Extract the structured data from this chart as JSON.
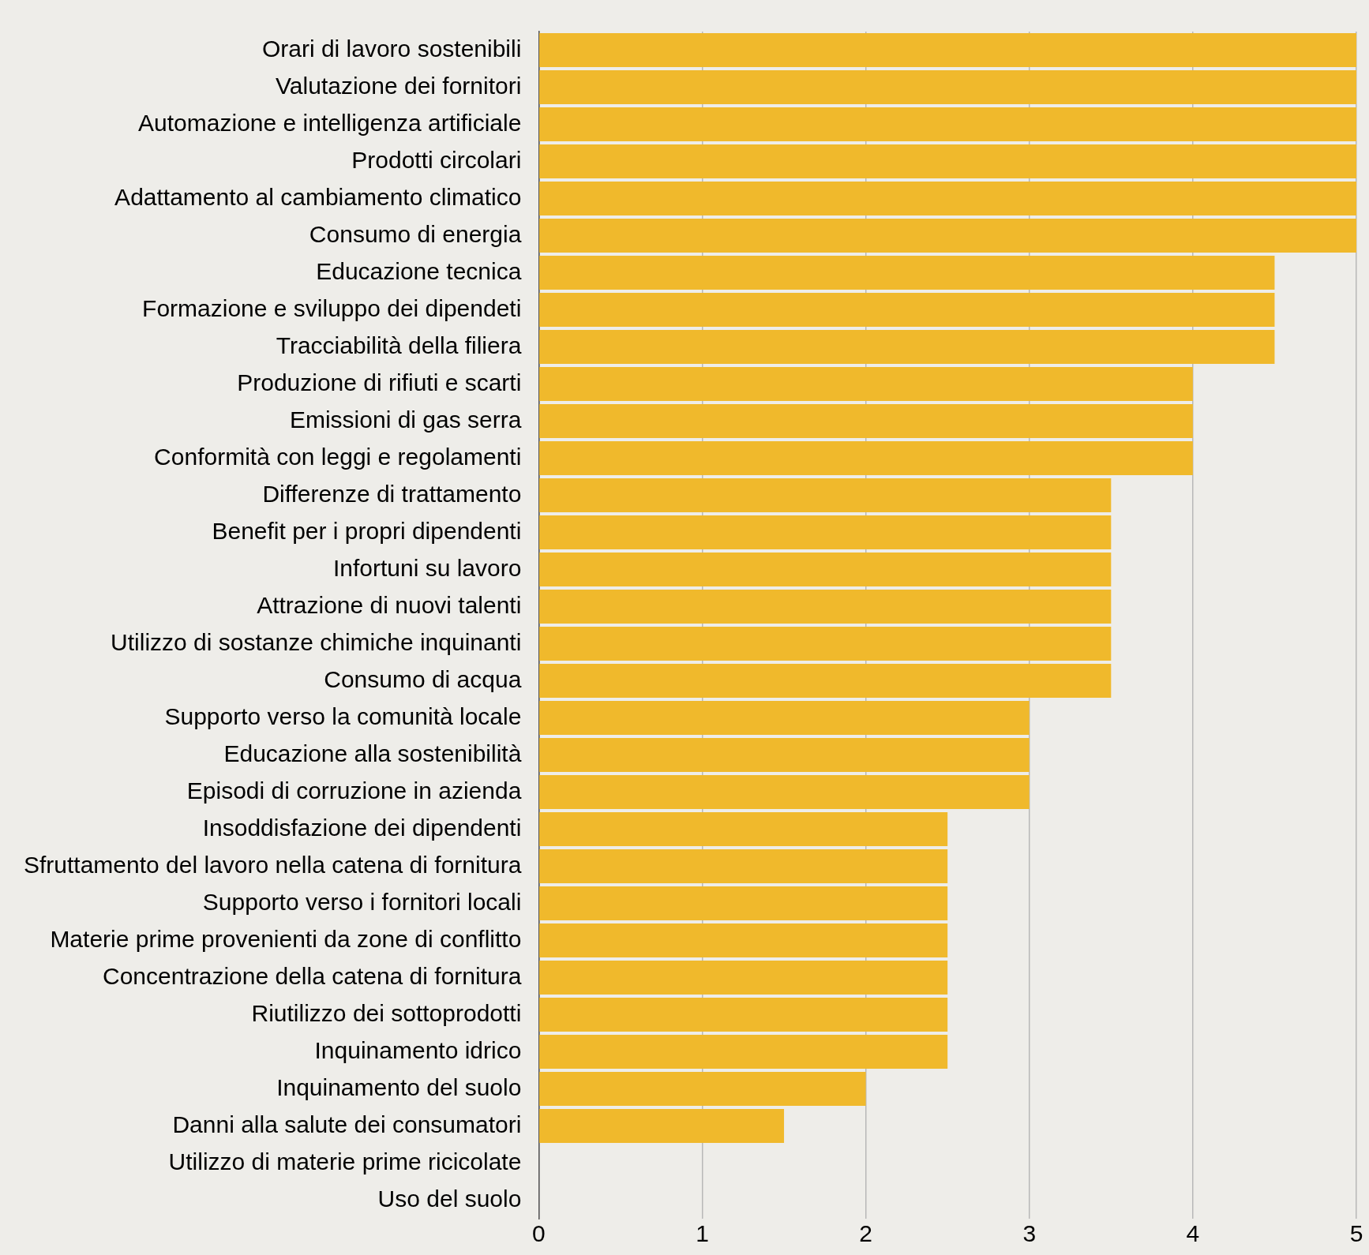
{
  "chart_data": {
    "type": "bar",
    "orientation": "horizontal",
    "categories": [
      "Orari di lavoro sostenibili",
      "Valutazione dei fornitori",
      "Automazione e intelligenza artificiale",
      "Prodotti circolari",
      "Adattamento al cambiamento climatico",
      "Consumo di energia",
      "Educazione tecnica",
      "Formazione e sviluppo dei dipendeti",
      "Tracciabilità della filiera",
      "Produzione di rifiuti e scarti",
      "Emissioni di gas serra",
      "Conformità con leggi e regolamenti",
      "Differenze di trattamento",
      "Benefit per i propri dipendenti",
      "Infortuni su lavoro",
      "Attrazione di nuovi talenti",
      "Utilizzo di sostanze chimiche inquinanti",
      "Consumo di acqua",
      "Supporto verso la comunità locale",
      "Educazione alla sostenibilità",
      "Episodi di corruzione in azienda",
      "Insoddisfazione dei dipendenti",
      "Sfruttamento del lavoro nella catena di fornitura",
      "Supporto verso i fornitori locali",
      "Materie prime provenienti da zone di conflitto",
      "Concentrazione della catena di fornitura",
      "Riutilizzo dei sottoprodotti",
      "Inquinamento idrico",
      "Inquinamento del suolo",
      "Danni alla salute dei consumatori",
      "Utilizzo di materie prime ricicolate",
      "Uso del suolo"
    ],
    "values": [
      5,
      5,
      5,
      5,
      5,
      5,
      4.5,
      4.5,
      4.5,
      4,
      4,
      4,
      3.5,
      3.5,
      3.5,
      3.5,
      3.5,
      3.5,
      3,
      3,
      3,
      2.5,
      2.5,
      2.5,
      2.5,
      2.5,
      2.5,
      2.5,
      2,
      1.5,
      0,
      0
    ],
    "color": "#f0b92c",
    "xlim": [
      0,
      5
    ],
    "xticks": [
      0,
      1,
      2,
      3,
      4,
      5
    ],
    "grid": "x",
    "legend": false
  }
}
